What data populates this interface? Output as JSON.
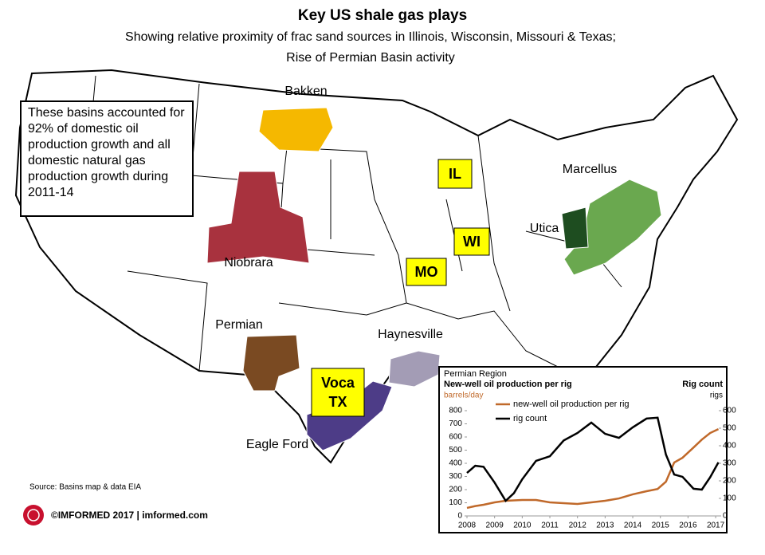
{
  "header": {
    "title": "Key US shale gas plays",
    "subtitle_lines": [
      "Showing relative proximity of frac sand sources in Illinois, Wisconsin, Missouri & Texas;",
      "Rise of Permian Basin activity"
    ]
  },
  "map": {
    "basins": [
      "Bakken",
      "Niobrara",
      "Permian",
      "Haynesville",
      "Eagle Ford",
      "Marcellus",
      "Utica"
    ],
    "sand_sources": [
      [
        "IL"
      ],
      [
        "WI"
      ],
      [
        "MO"
      ],
      [
        "Voca",
        "TX"
      ]
    ],
    "note": "These basins accounted for 92% of domestic oil production growth and all domestic natural gas production growth during 2011-14",
    "source": "Source: Basins map & data EIA",
    "copyright": "©IMFORMED 2017  | imformed.com"
  },
  "chart_data": {
    "type": "line",
    "title": "Permian Region",
    "subtitle": "New-well oil production per rig",
    "y_label": "barrels/day",
    "y2_title": "Rig count",
    "y2_label": "rigs",
    "x": [
      2008,
      2008.3,
      2008.6,
      2009,
      2009.4,
      2009.7,
      2010,
      2010.5,
      2011,
      2011.5,
      2012,
      2012.5,
      2013,
      2013.5,
      2014,
      2014.5,
      2014.9,
      2015.2,
      2015.5,
      2015.8,
      2016.2,
      2016.5,
      2016.8,
      2017.1
    ],
    "xlim": [
      2008,
      2017.2
    ],
    "xticks": [
      2008,
      2009,
      2010,
      2011,
      2012,
      2013,
      2014,
      2015,
      2016,
      2017
    ],
    "ylim": [
      0,
      800
    ],
    "yticks": [
      0,
      100,
      200,
      300,
      400,
      500,
      600,
      700,
      800
    ],
    "y2lim": [
      0,
      600
    ],
    "y2ticks": [
      0,
      100,
      200,
      300,
      400,
      500,
      600
    ],
    "series": [
      {
        "name": "new-well oil production per rig",
        "color": "#c0692a",
        "axis": "y",
        "values": [
          61,
          75,
          85,
          103,
          115,
          118,
          121,
          121,
          103,
          97,
          91,
          103,
          115,
          133,
          164,
          188,
          205,
          260,
          406,
          442,
          520,
          580,
          630,
          660
        ]
      },
      {
        "name": "rig count",
        "color": "#000000",
        "axis": "y2",
        "values": [
          245,
          286,
          280,
          190,
          86,
          130,
          209,
          314,
          340,
          430,
          473,
          532,
          468,
          445,
          505,
          555,
          560,
          350,
          236,
          223,
          155,
          150,
          220,
          305
        ]
      }
    ]
  }
}
